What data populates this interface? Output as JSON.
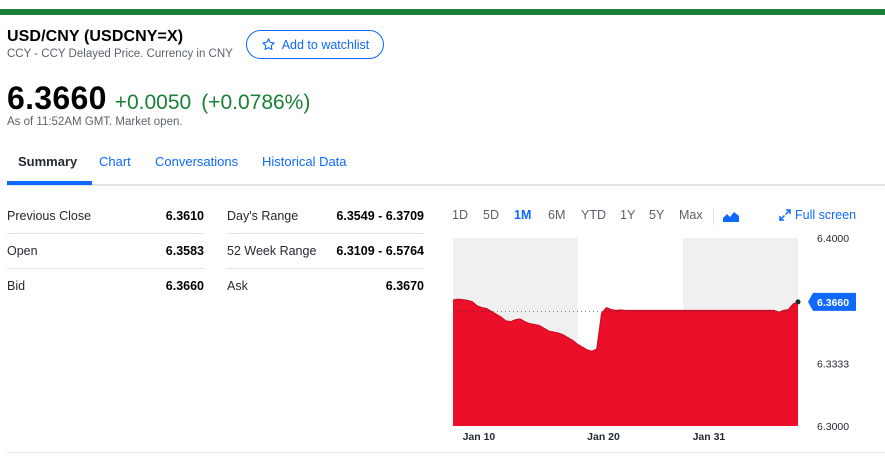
{
  "colors": {
    "top_bar": "#188038",
    "accent_blue": "#0f69ff",
    "positive_green": "#188038",
    "chart_fill": "#eb0f29",
    "shade": "#f0f0f0"
  },
  "header": {
    "title": "USD/CNY (USDCNY=X)",
    "subtitle": "CCY - CCY Delayed Price. Currency in CNY",
    "watchlist_label": "Add to watchlist",
    "watchlist_icon": "star-icon"
  },
  "quote": {
    "price": "6.3660",
    "change": "+0.0050",
    "change_percent": "(+0.0786%)",
    "as_of": "As of 11:52AM GMT. Market open."
  },
  "tabs": [
    {
      "label": "Summary",
      "active": true
    },
    {
      "label": "Chart",
      "active": false
    },
    {
      "label": "Conversations",
      "active": false
    },
    {
      "label": "Historical Data",
      "active": false
    }
  ],
  "stats": {
    "left": [
      {
        "label": "Previous Close",
        "value": "6.3610"
      },
      {
        "label": "Open",
        "value": "6.3583"
      },
      {
        "label": "Bid",
        "value": "6.3660"
      }
    ],
    "right": [
      {
        "label": "Day's Range",
        "value": "6.3549 - 6.3709"
      },
      {
        "label": "52 Week Range",
        "value": "6.3109 - 6.5764"
      },
      {
        "label": "Ask",
        "value": "6.3670"
      }
    ]
  },
  "range_selector": {
    "options": [
      "1D",
      "5D",
      "1M",
      "6M",
      "YTD",
      "1Y",
      "5Y",
      "Max"
    ],
    "selected": "1M",
    "chart_type_icon": "mountain-chart-icon",
    "full_screen_label": "Full screen",
    "full_screen_icon": "expand-icon"
  },
  "chart_data": {
    "type": "area",
    "x_labels": [
      "Jan 10",
      "Jan 20",
      "Jan 31"
    ],
    "y_ticks": [
      "6.4000",
      "6.3333",
      "6.3000"
    ],
    "ylim": [
      6.3,
      6.4
    ],
    "current_value_label": "6.3660",
    "reference_line": 6.361,
    "x": [
      0,
      0.5,
      1,
      1.5,
      2,
      2.5,
      3,
      3.5,
      4,
      4.5,
      5,
      5.5,
      6,
      6.5,
      7,
      7.5,
      8,
      8.5,
      9,
      9.5,
      10,
      10.5,
      11,
      11.5,
      12,
      12.5,
      13,
      13.5,
      14,
      14.5,
      15,
      15.5,
      16,
      16.5,
      17,
      17.5,
      18,
      18.5,
      19,
      19.5,
      20,
      20.5,
      21,
      21.5,
      22,
      22.5,
      23,
      23.5,
      24,
      24.5,
      25,
      25.5,
      26,
      26.5,
      27,
      27.5,
      28,
      28.5,
      29,
      29.5,
      30,
      30.5,
      31,
      31.5,
      32,
      32.5,
      33,
      33.5,
      34,
      34.5,
      35,
      35.5,
      36
    ],
    "values": [
      6.367,
      6.3675,
      6.3672,
      6.3668,
      6.3662,
      6.364,
      6.363,
      6.3625,
      6.361,
      6.3595,
      6.358,
      6.356,
      6.3555,
      6.3565,
      6.357,
      6.3555,
      6.3545,
      6.354,
      6.3535,
      6.352,
      6.3505,
      6.35,
      6.3495,
      6.3485,
      6.347,
      6.3455,
      6.3435,
      6.342,
      6.3405,
      6.3398,
      6.341,
      6.36,
      6.363,
      6.362,
      6.3615,
      6.3618,
      6.3615,
      6.3615,
      6.3615,
      6.3615,
      6.3615,
      6.3615,
      6.3615,
      6.3615,
      6.3615,
      6.3615,
      6.3615,
      6.3615,
      6.3615,
      6.3615,
      6.3615,
      6.3615,
      6.3615,
      6.3615,
      6.3615,
      6.3615,
      6.3615,
      6.3615,
      6.3615,
      6.3615,
      6.3615,
      6.3615,
      6.3615,
      6.3615,
      6.3615,
      6.3615,
      6.3615,
      6.3615,
      6.3605,
      6.3615,
      6.362,
      6.365,
      6.366
    ],
    "shaded_ranges": [
      [
        0,
        13
      ],
      [
        24,
        36
      ]
    ],
    "x_tick_positions": [
      1,
      14,
      25
    ]
  }
}
